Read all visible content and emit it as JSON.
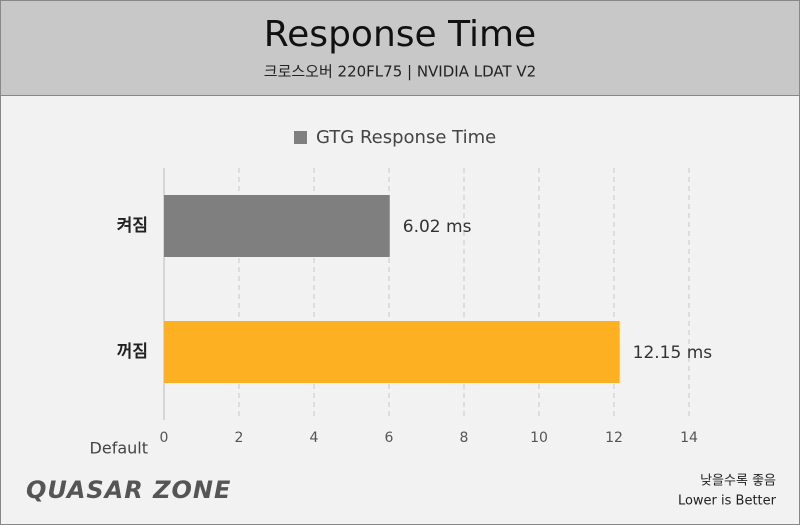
{
  "chart_data": {
    "type": "barh",
    "title": "Response Time",
    "subtitle": "크로스오버 220FL75  |  NVIDIA LDAT V2",
    "categories": [
      "켜짐",
      "꺼짐"
    ],
    "series": [
      {
        "name": "GTG Response Time",
        "color": "#7f7f7f",
        "colors": [
          "#7f7f7f",
          "#fdb022"
        ],
        "values": [
          6.02,
          12.15
        ],
        "value_labels": [
          "6.02 ms",
          "12.15 ms"
        ]
      }
    ],
    "axis_label": "Default",
    "xlim": [
      0,
      14
    ],
    "xticks": [
      0,
      2,
      4,
      6,
      8,
      10,
      12,
      14
    ],
    "grid": true,
    "legend": "top"
  },
  "footer": {
    "logo": "QUASAR ZONE",
    "note_ko": "낮을수록 좋음",
    "note_en": "Lower is Better"
  }
}
